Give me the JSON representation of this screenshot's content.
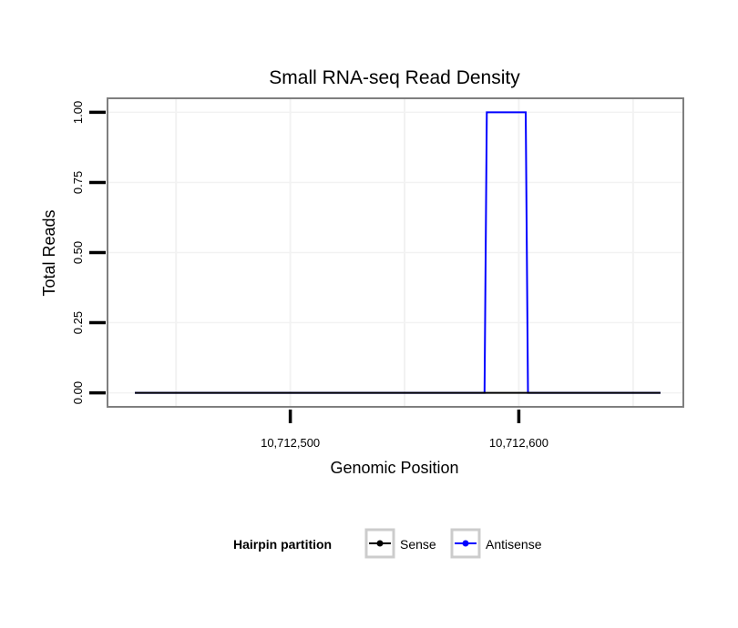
{
  "chart_data": {
    "type": "line",
    "title": "Small RNA-seq Read Density",
    "xlabel": "Genomic Position",
    "ylabel": "Total Reads",
    "xlim": [
      10712420,
      10712672
    ],
    "ylim": [
      -0.05,
      1.05
    ],
    "x_ticks": [
      {
        "value": 10712500,
        "label": "10,712,500"
      },
      {
        "value": 10712600,
        "label": "10,712,600"
      }
    ],
    "y_ticks": [
      {
        "value": 0.0,
        "label": "0.00"
      },
      {
        "value": 0.25,
        "label": "0.25"
      },
      {
        "value": 0.5,
        "label": "0.50"
      },
      {
        "value": 0.75,
        "label": "0.75"
      },
      {
        "value": 1.0,
        "label": "1.00"
      }
    ],
    "grid": true,
    "legend": {
      "title": "Hairpin partition",
      "placement": "bottom"
    },
    "series": [
      {
        "name": "Sense",
        "color": "#000000",
        "x": [
          10712432,
          10712662
        ],
        "y": [
          0,
          0
        ]
      },
      {
        "name": "Antisense",
        "color": "#0000ff",
        "x": [
          10712432,
          10712585,
          10712586,
          10712603,
          10712604,
          10712662
        ],
        "y": [
          0,
          0,
          1,
          1,
          0,
          0
        ]
      }
    ]
  }
}
